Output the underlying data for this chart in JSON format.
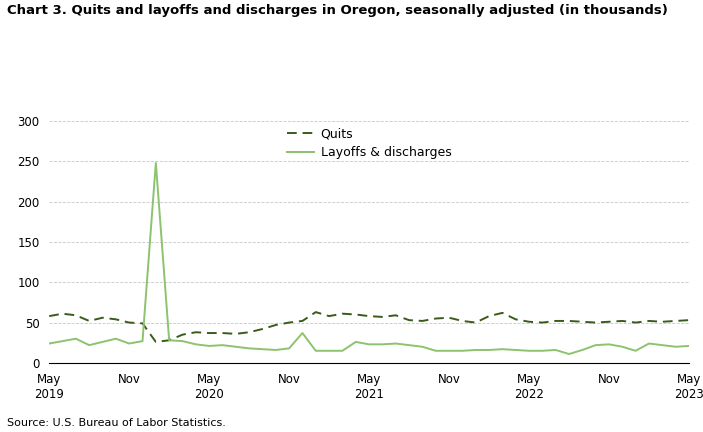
{
  "title": "Chart 3. Quits and layoffs and discharges in Oregon, seasonally adjusted (in thousands)",
  "source": "Source: U.S. Bureau of Labor Statistics.",
  "quits_label": "Quits",
  "layoffs_label": "Layoffs & discharges",
  "quits_color": "#3a5c1a",
  "layoffs_color": "#8dc26e",
  "background_color": "#ffffff",
  "ylim": [
    0,
    300
  ],
  "yticks": [
    0,
    50,
    100,
    150,
    200,
    250,
    300
  ],
  "x_tick_positions": [
    0,
    6,
    12,
    18,
    24,
    30,
    36,
    42,
    48
  ],
  "x_tick_labels_line1": [
    "May",
    "Nov",
    "May",
    "Nov",
    "May",
    "Nov",
    "May",
    "Nov",
    "May"
  ],
  "x_tick_labels_line2": [
    "2019",
    "",
    "2020",
    "",
    "2021",
    "",
    "2022",
    "",
    "2023"
  ],
  "quits": [
    58,
    61,
    59,
    52,
    56,
    54,
    50,
    49,
    26,
    28,
    35,
    38,
    37,
    37,
    36,
    38,
    42,
    47,
    50,
    52,
    63,
    58,
    61,
    60,
    58,
    57,
    59,
    53,
    52,
    55,
    56,
    52,
    50,
    58,
    62,
    54,
    51,
    50,
    52,
    52,
    51,
    50,
    51,
    52,
    50,
    52,
    51,
    52,
    53
  ],
  "layoffs": [
    24,
    27,
    30,
    22,
    26,
    30,
    24,
    27,
    248,
    28,
    27,
    23,
    21,
    22,
    20,
    18,
    17,
    16,
    18,
    37,
    15,
    15,
    15,
    26,
    23,
    23,
    24,
    22,
    20,
    15,
    15,
    15,
    16,
    16,
    17,
    16,
    15,
    15,
    16,
    11,
    16,
    22,
    23,
    20,
    15,
    24,
    22,
    20,
    21
  ]
}
